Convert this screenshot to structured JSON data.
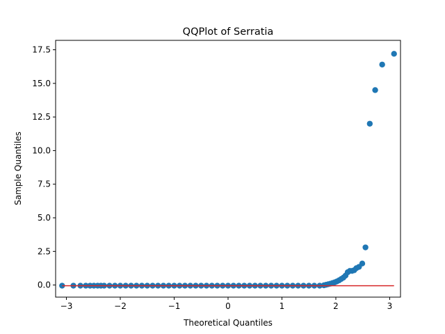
{
  "chart_data": {
    "type": "scatter",
    "title": "QQPlot of Serratia",
    "xlabel": "Theoretical Quantiles",
    "ylabel": "Sample Quantiles",
    "xlim": [
      -3.2,
      3.2
    ],
    "ylim": [
      -0.9,
      18.2
    ],
    "xticks": [
      -3,
      -2,
      -1,
      0,
      1,
      2,
      3
    ],
    "xtick_labels": [
      "−3",
      "−2",
      "−1",
      "0",
      "1",
      "2",
      "3"
    ],
    "yticks": [
      0.0,
      2.5,
      5.0,
      7.5,
      10.0,
      12.5,
      15.0,
      17.5
    ],
    "ytick_labels": [
      "0.0",
      "2.5",
      "5.0",
      "7.5",
      "10.0",
      "12.5",
      "15.0",
      "17.5"
    ],
    "grid": false,
    "colors": {
      "points": "#1f77b4",
      "reference_line": "#d62728"
    },
    "reference_line": {
      "x": [
        -3.08,
        3.08
      ],
      "y": [
        -0.05,
        -0.05
      ]
    },
    "points": [
      {
        "x": -3.08,
        "y": -0.05
      },
      {
        "x": -2.87,
        "y": -0.05
      },
      {
        "x": -2.74,
        "y": -0.05
      },
      {
        "x": -2.64,
        "y": -0.05
      },
      {
        "x": -2.56,
        "y": -0.05
      },
      {
        "x": -2.49,
        "y": -0.05
      },
      {
        "x": -2.42,
        "y": -0.05
      },
      {
        "x": -2.36,
        "y": -0.05
      },
      {
        "x": -2.3,
        "y": -0.05
      },
      {
        "x": -2.2,
        "y": -0.05
      },
      {
        "x": -2.1,
        "y": -0.05
      },
      {
        "x": -2.0,
        "y": -0.05
      },
      {
        "x": -1.9,
        "y": -0.05
      },
      {
        "x": -1.8,
        "y": -0.05
      },
      {
        "x": -1.7,
        "y": -0.05
      },
      {
        "x": -1.6,
        "y": -0.05
      },
      {
        "x": -1.5,
        "y": -0.05
      },
      {
        "x": -1.4,
        "y": -0.05
      },
      {
        "x": -1.3,
        "y": -0.05
      },
      {
        "x": -1.2,
        "y": -0.05
      },
      {
        "x": -1.1,
        "y": -0.05
      },
      {
        "x": -1.0,
        "y": -0.05
      },
      {
        "x": -0.9,
        "y": -0.05
      },
      {
        "x": -0.8,
        "y": -0.05
      },
      {
        "x": -0.7,
        "y": -0.05
      },
      {
        "x": -0.6,
        "y": -0.05
      },
      {
        "x": -0.5,
        "y": -0.05
      },
      {
        "x": -0.4,
        "y": -0.05
      },
      {
        "x": -0.3,
        "y": -0.05
      },
      {
        "x": -0.2,
        "y": -0.05
      },
      {
        "x": -0.1,
        "y": -0.05
      },
      {
        "x": 0.0,
        "y": -0.05
      },
      {
        "x": 0.1,
        "y": -0.05
      },
      {
        "x": 0.2,
        "y": -0.05
      },
      {
        "x": 0.3,
        "y": -0.05
      },
      {
        "x": 0.4,
        "y": -0.05
      },
      {
        "x": 0.5,
        "y": -0.05
      },
      {
        "x": 0.6,
        "y": -0.05
      },
      {
        "x": 0.7,
        "y": -0.05
      },
      {
        "x": 0.8,
        "y": -0.05
      },
      {
        "x": 0.9,
        "y": -0.05
      },
      {
        "x": 1.0,
        "y": -0.05
      },
      {
        "x": 1.1,
        "y": -0.05
      },
      {
        "x": 1.2,
        "y": -0.05
      },
      {
        "x": 1.3,
        "y": -0.05
      },
      {
        "x": 1.4,
        "y": -0.05
      },
      {
        "x": 1.5,
        "y": -0.05
      },
      {
        "x": 1.6,
        "y": -0.05
      },
      {
        "x": 1.7,
        "y": -0.05
      },
      {
        "x": 1.78,
        "y": -0.02
      },
      {
        "x": 1.82,
        "y": 0.02
      },
      {
        "x": 1.86,
        "y": 0.06
      },
      {
        "x": 1.9,
        "y": 0.1
      },
      {
        "x": 1.94,
        "y": 0.15
      },
      {
        "x": 1.98,
        "y": 0.2
      },
      {
        "x": 2.02,
        "y": 0.27
      },
      {
        "x": 2.06,
        "y": 0.35
      },
      {
        "x": 2.1,
        "y": 0.45
      },
      {
        "x": 2.14,
        "y": 0.55
      },
      {
        "x": 2.18,
        "y": 0.7
      },
      {
        "x": 2.22,
        "y": 0.95
      },
      {
        "x": 2.26,
        "y": 1.05
      },
      {
        "x": 2.3,
        "y": 1.05
      },
      {
        "x": 2.34,
        "y": 1.1
      },
      {
        "x": 2.38,
        "y": 1.25
      },
      {
        "x": 2.43,
        "y": 1.35
      },
      {
        "x": 2.49,
        "y": 1.6
      },
      {
        "x": 2.55,
        "y": 2.8
      },
      {
        "x": 2.63,
        "y": 12.0
      },
      {
        "x": 2.73,
        "y": 14.5
      },
      {
        "x": 2.86,
        "y": 16.4
      },
      {
        "x": 3.08,
        "y": 17.2
      }
    ]
  }
}
